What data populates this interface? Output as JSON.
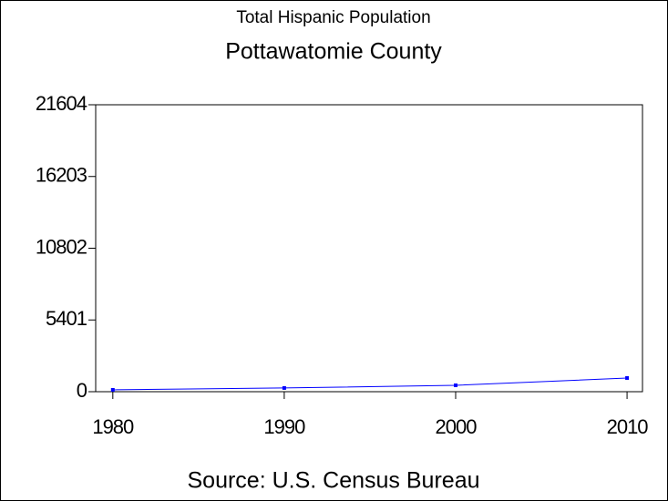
{
  "chart_data": {
    "type": "line",
    "title": "Total Hispanic Population",
    "subtitle": "Pottawatomie County",
    "source": "Source: U.S. Census Bureau",
    "x": [
      1980,
      1990,
      2000,
      2010
    ],
    "series": [
      {
        "name": "Hispanic Population",
        "color": "#0000ff",
        "values": [
          140,
          280,
          480,
          1030
        ]
      }
    ],
    "xlim": [
      1979,
      2010.9
    ],
    "xticks": [
      1980,
      1990,
      2000,
      2010
    ],
    "ylim": [
      0,
      21604
    ],
    "yticks": [
      0,
      5401,
      10802,
      16203,
      21604
    ],
    "legend": false
  }
}
